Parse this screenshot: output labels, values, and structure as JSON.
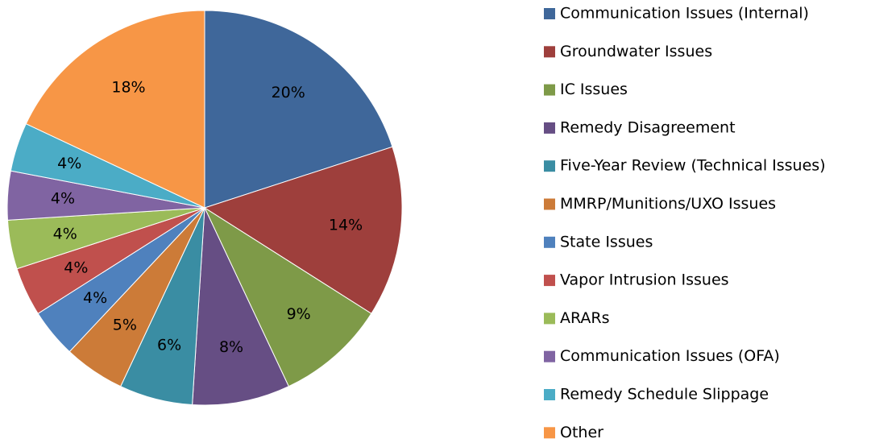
{
  "chart_data": {
    "type": "pie",
    "categories": [
      "Communication Issues (Internal)",
      "Groundwater Issues",
      "IC Issues",
      "Remedy Disagreement",
      "Five-Year Review (Technical Issues)",
      "MMRP/Munitions/UXO Issues",
      "State Issues",
      "Vapor Intrusion Issues",
      "ARARs",
      "Communication Issues (OFA)",
      "Remedy Schedule Slippage",
      "Other"
    ],
    "values": [
      20,
      14,
      9,
      8,
      6,
      5,
      4,
      4,
      4,
      4,
      4,
      18
    ],
    "value_labels": [
      "20%",
      "14%",
      "9%",
      "8%",
      "6%",
      "5%",
      "4%",
      "4%",
      "4%",
      "4%",
      "4%",
      "18%"
    ],
    "colors": [
      "#3F679A",
      "#9E3F3C",
      "#7E9A48",
      "#664E84",
      "#3A8DA3",
      "#CC7B38",
      "#4F81BD",
      "#C0504D",
      "#9BBB59",
      "#8064A2",
      "#4BACC6",
      "#F79646"
    ],
    "legend": "right"
  }
}
